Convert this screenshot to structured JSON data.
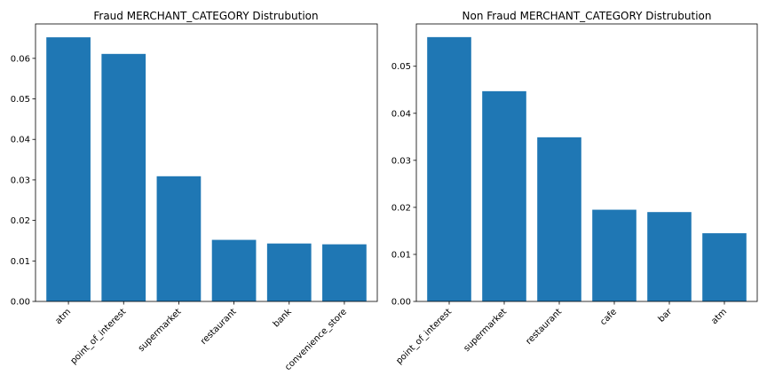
{
  "chart_data": [
    {
      "type": "bar",
      "title": "Fraud MERCHANT_CATEGORY Distrubution",
      "categories": [
        "atm",
        "point_of_interest",
        "supermarket",
        "restaurant",
        "bank",
        "convenience_store"
      ],
      "values": [
        0.0652,
        0.0611,
        0.0309,
        0.0152,
        0.0143,
        0.0141
      ],
      "ylim": [
        0,
        0.0685
      ],
      "yticks": [
        "0.00",
        "0.01",
        "0.02",
        "0.03",
        "0.04",
        "0.05",
        "0.06"
      ],
      "xlabel": "",
      "ylabel": "",
      "color": "#1f77b4"
    },
    {
      "type": "bar",
      "title": "Non Fraud MERCHANT_CATEGORY Distrubution",
      "categories": [
        "point_of_interest",
        "supermarket",
        "restaurant",
        "cafe",
        "bar",
        "atm"
      ],
      "values": [
        0.0562,
        0.0447,
        0.0349,
        0.0195,
        0.019,
        0.0145
      ],
      "ylim": [
        0,
        0.059
      ],
      "yticks": [
        "0.00",
        "0.01",
        "0.02",
        "0.03",
        "0.04",
        "0.05"
      ],
      "xlabel": "",
      "ylabel": "",
      "color": "#1f77b4"
    }
  ]
}
